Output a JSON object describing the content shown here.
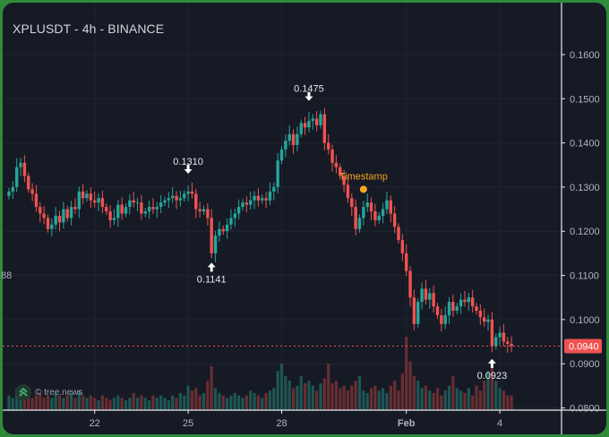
{
  "title": "XPLUSDT - 4h - BINANCE",
  "watermark": "© tree.news",
  "colors": {
    "background": "#161a25",
    "up": "#26a69a",
    "down": "#ef5350",
    "price_line": "#ef5350",
    "timestamp_marker": "#f5a623",
    "frame": "#2f8a3a"
  },
  "chart_data": {
    "type": "candlestick",
    "y_ticks": [
      "0.1600",
      "0.1500",
      "0.1400",
      "0.1300",
      "0.1200",
      "0.1100",
      "0.1000",
      "0.0900",
      "0.0800"
    ],
    "x_ticks": [
      "22",
      "25",
      "28",
      "Feb",
      "4"
    ],
    "ylim": [
      0.0795,
      0.1685
    ],
    "current_price": "0.0940",
    "annotations": [
      {
        "label": "0.1310",
        "value": 0.131,
        "dir": "down",
        "index": 46
      },
      {
        "label": "0.1141",
        "value": 0.1141,
        "dir": "up",
        "index": 52
      },
      {
        "label": "0.1475",
        "value": 0.1475,
        "dir": "down",
        "index": 77
      },
      {
        "label": "0.0923",
        "value": 0.0923,
        "dir": "up",
        "index": 124
      }
    ],
    "event": {
      "label": "Timestamp",
      "index": 91,
      "value": 0.1295
    },
    "left_cut_label": "88",
    "closes": [
      0.129,
      0.13,
      0.1345,
      0.1355,
      0.1325,
      0.1295,
      0.1285,
      0.1255,
      0.124,
      0.123,
      0.1205,
      0.1215,
      0.1235,
      0.122,
      0.125,
      0.123,
      0.1255,
      0.125,
      0.129,
      0.1275,
      0.1285,
      0.127,
      0.1265,
      0.1275,
      0.1255,
      0.1245,
      0.1225,
      0.123,
      0.126,
      0.124,
      0.1255,
      0.127,
      0.1265,
      0.1265,
      0.124,
      0.1245,
      0.1255,
      0.125,
      0.1255,
      0.1265,
      0.127,
      0.1275,
      0.128,
      0.127,
      0.1275,
      0.1285,
      0.129,
      0.1285,
      0.125,
      0.1245,
      0.125,
      0.123,
      0.115,
      0.119,
      0.1205,
      0.12,
      0.1215,
      0.123,
      0.124,
      0.1255,
      0.1265,
      0.126,
      0.127,
      0.128,
      0.127,
      0.1275,
      0.127,
      0.129,
      0.13,
      0.136,
      0.1385,
      0.1405,
      0.142,
      0.1395,
      0.142,
      0.1445,
      0.1435,
      0.145,
      0.1455,
      0.144,
      0.1465,
      0.14,
      0.1385,
      0.1355,
      0.1345,
      0.1325,
      0.1305,
      0.1275,
      0.1255,
      0.1205,
      0.123,
      0.1255,
      0.1265,
      0.1245,
      0.1225,
      0.1235,
      0.125,
      0.127,
      0.124,
      0.121,
      0.118,
      0.115,
      0.111,
      0.105,
      0.099,
      0.104,
      0.107,
      0.1045,
      0.106,
      0.103,
      0.101,
      0.099,
      0.101,
      0.104,
      0.102,
      0.103,
      0.1045,
      0.104,
      0.105,
      0.103,
      0.102,
      0.1005,
      0.0995,
      0.1,
      0.094,
      0.096,
      0.097,
      0.095,
      0.0945,
      0.094
    ],
    "volumes": [
      6,
      5,
      9,
      8,
      7,
      6,
      5,
      6,
      7,
      5,
      6,
      5,
      7,
      6,
      5,
      6,
      7,
      5,
      8,
      6,
      5,
      6,
      5,
      4,
      6,
      5,
      4,
      5,
      6,
      5,
      4,
      5,
      7,
      5,
      6,
      5,
      4,
      6,
      5,
      6,
      5,
      4,
      6,
      5,
      7,
      6,
      10,
      8,
      9,
      6,
      7,
      12,
      18,
      9,
      7,
      6,
      5,
      6,
      7,
      6,
      5,
      6,
      8,
      7,
      6,
      5,
      7,
      8,
      9,
      16,
      19,
      14,
      12,
      9,
      10,
      14,
      11,
      12,
      10,
      8,
      11,
      13,
      19,
      11,
      12,
      9,
      10,
      8,
      10,
      12,
      14,
      8,
      7,
      9,
      10,
      8,
      9,
      7,
      10,
      12,
      8,
      15,
      30,
      20,
      14,
      12,
      9,
      10,
      8,
      7,
      9,
      6,
      8,
      10,
      14,
      9,
      8,
      7,
      9,
      6,
      10,
      8,
      12,
      16,
      20,
      12,
      9,
      8,
      6,
      6
    ]
  }
}
